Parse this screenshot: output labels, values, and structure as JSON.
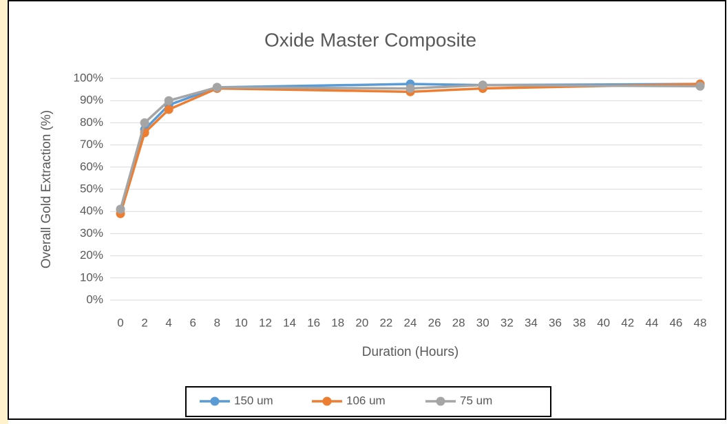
{
  "chart_data": {
    "type": "line",
    "title": "Oxide Master Composite",
    "x_label": "Duration (Hours)",
    "y_label": "Overall Gold Extraction (%)",
    "x": [
      0,
      2,
      4,
      8,
      24,
      30,
      48
    ],
    "series": [
      {
        "name": "150 um",
        "color": "#5b9bd5",
        "values": [
          41,
          77,
          88,
          96,
          97.5,
          97,
          97.5
        ]
      },
      {
        "name": "106 um",
        "color": "#ed7d31",
        "values": [
          39,
          75.5,
          86,
          95.5,
          94,
          95.5,
          97.5
        ]
      },
      {
        "name": "75 um",
        "color": "#a5a5a5",
        "values": [
          41,
          80,
          90,
          96,
          95.5,
          97,
          96.5
        ]
      }
    ],
    "xlim": [
      0,
      48
    ],
    "xticks": [
      0,
      2,
      4,
      6,
      8,
      10,
      12,
      14,
      16,
      18,
      20,
      22,
      24,
      26,
      28,
      30,
      32,
      34,
      36,
      38,
      40,
      42,
      44,
      46,
      48
    ],
    "ylim": [
      0,
      100
    ],
    "yticks": [
      {
        "value": 0,
        "label": "0%"
      },
      {
        "value": 10,
        "label": "10%"
      },
      {
        "value": 20,
        "label": "20%"
      },
      {
        "value": 30,
        "label": "30%"
      },
      {
        "value": 40,
        "label": "40%"
      },
      {
        "value": 50,
        "label": "50%"
      },
      {
        "value": 60,
        "label": "60%"
      },
      {
        "value": 70,
        "label": "70%"
      },
      {
        "value": 80,
        "label": "80%"
      },
      {
        "value": 90,
        "label": "90%"
      },
      {
        "value": 100,
        "label": "100%"
      }
    ],
    "grid": true,
    "legend": "bottom"
  }
}
